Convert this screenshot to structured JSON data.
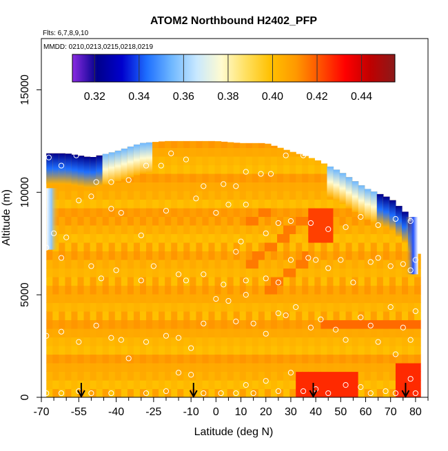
{
  "chart_data": {
    "type": "heatmap",
    "title": "ATOM2 Northbound H2402_PFP",
    "subtitle_lines": [
      "Flts: 6,7,8,9,10",
      "MMDD: 0210,0213,0215,0218,0219"
    ],
    "xlabel": "Latitude (deg N)",
    "ylabel": "Altitude (m)",
    "xlim": [
      -70,
      85
    ],
    "ylim": [
      0,
      17500
    ],
    "x_ticks": [
      -70,
      -55,
      -40,
      -25,
      -10,
      0,
      10,
      20,
      30,
      40,
      50,
      60,
      70,
      80
    ],
    "x_minor_ticks": [
      -65,
      -60,
      -50,
      -45,
      -35,
      -30,
      -20,
      -15,
      -5,
      5,
      15,
      25,
      35,
      45,
      55,
      65,
      75,
      85
    ],
    "y_ticks": [
      0,
      5000,
      10000,
      15000
    ],
    "colorbar": {
      "min": 0.31,
      "max": 0.455,
      "ticks": [
        0.32,
        0.34,
        0.36,
        0.38,
        0.4,
        0.42,
        0.44
      ],
      "tick_labels": [
        "0.32",
        "0.34",
        "0.36",
        "0.38",
        "0.40",
        "0.42",
        "0.44"
      ],
      "colors": [
        "#8a2be2",
        "#00008b",
        "#0000cd",
        "#1e6fff",
        "#6fb8ff",
        "#c8e8ff",
        "#fffbd0",
        "#ffe060",
        "#ffc000",
        "#ff9900",
        "#ff5000",
        "#ff0000",
        "#c00000",
        "#8b1a1a"
      ]
    },
    "grid": false,
    "legend": "top-inside",
    "profile_columns": [
      {
        "lat": -68,
        "top": 11900,
        "band": "blue"
      },
      {
        "lat": -60,
        "top": 11900,
        "band": "blue"
      },
      {
        "lat": -50,
        "top": 11700,
        "band": "blue"
      },
      {
        "lat": -40,
        "top": 12000,
        "band": "light"
      },
      {
        "lat": -30,
        "top": 12400,
        "band": "light"
      },
      {
        "lat": -20,
        "top": 12500,
        "band": "orange"
      },
      {
        "lat": -10,
        "top": 12500,
        "band": "orange"
      },
      {
        "lat": 0,
        "top": 12500,
        "band": "orange"
      },
      {
        "lat": 10,
        "top": 12400,
        "band": "orange"
      },
      {
        "lat": 20,
        "top": 12400,
        "band": "orange"
      },
      {
        "lat": 30,
        "top": 12000,
        "band": "orange"
      },
      {
        "lat": 40,
        "top": 11600,
        "band": "orange"
      },
      {
        "lat": 50,
        "top": 11000,
        "band": "light"
      },
      {
        "lat": 60,
        "top": 10200,
        "band": "light"
      },
      {
        "lat": 70,
        "top": 9700,
        "band": "blue"
      },
      {
        "lat": 78,
        "top": 8800,
        "band": "blue"
      },
      {
        "lat": 80,
        "top": 7000,
        "band": "orange"
      }
    ],
    "arrows_lat": [
      -54,
      -9,
      39,
      76
    ],
    "points": [
      [
        -67,
        11700
      ],
      [
        -62,
        11300
      ],
      [
        -56,
        11800
      ],
      [
        -48,
        10500
      ],
      [
        -42,
        10500
      ],
      [
        -35,
        10600
      ],
      [
        -28,
        11300
      ],
      [
        -22,
        11300
      ],
      [
        -18,
        11900
      ],
      [
        -12,
        11600
      ],
      [
        -5,
        10300
      ],
      [
        3,
        10400
      ],
      [
        8,
        10300
      ],
      [
        12,
        11000
      ],
      [
        18,
        10900
      ],
      [
        22,
        10900
      ],
      [
        28,
        11800
      ],
      [
        35,
        11800
      ],
      [
        40,
        11800
      ],
      [
        -65,
        8000
      ],
      [
        -60,
        7800
      ],
      [
        -55,
        9600
      ],
      [
        -50,
        9800
      ],
      [
        -42,
        9200
      ],
      [
        -38,
        9000
      ],
      [
        -30,
        7900
      ],
      [
        -20,
        9100
      ],
      [
        -8,
        9700
      ],
      [
        0,
        9000
      ],
      [
        5,
        9400
      ],
      [
        10,
        7600
      ],
      [
        12,
        9400
      ],
      [
        20,
        8000
      ],
      [
        25,
        8500
      ],
      [
        30,
        8600
      ],
      [
        38,
        8500
      ],
      [
        45,
        8200
      ],
      [
        52,
        8300
      ],
      [
        58,
        8800
      ],
      [
        65,
        8400
      ],
      [
        72,
        8700
      ],
      [
        78,
        8600
      ],
      [
        -68,
        7300
      ],
      [
        -62,
        6800
      ],
      [
        -50,
        6400
      ],
      [
        -46,
        5800
      ],
      [
        -40,
        6200
      ],
      [
        -30,
        5700
      ],
      [
        -25,
        6400
      ],
      [
        -15,
        6000
      ],
      [
        -12,
        5700
      ],
      [
        -5,
        6000
      ],
      [
        3,
        5500
      ],
      [
        8,
        7100
      ],
      [
        12,
        5700
      ],
      [
        20,
        5800
      ],
      [
        25,
        5600
      ],
      [
        30,
        6700
      ],
      [
        37,
        6800
      ],
      [
        40,
        6700
      ],
      [
        45,
        6300
      ],
      [
        50,
        6700
      ],
      [
        55,
        5600
      ],
      [
        62,
        6600
      ],
      [
        65,
        6800
      ],
      [
        70,
        6400
      ],
      [
        75,
        6500
      ],
      [
        78,
        6200
      ],
      [
        80,
        6700
      ],
      [
        -68,
        3000
      ],
      [
        -62,
        3200
      ],
      [
        -55,
        2700
      ],
      [
        -48,
        3500
      ],
      [
        -42,
        2900
      ],
      [
        -38,
        2800
      ],
      [
        -28,
        2700
      ],
      [
        -20,
        3000
      ],
      [
        -15,
        2900
      ],
      [
        -10,
        2400
      ],
      [
        -5,
        3600
      ],
      [
        0,
        4800
      ],
      [
        5,
        4700
      ],
      [
        8,
        3700
      ],
      [
        12,
        5000
      ],
      [
        15,
        3600
      ],
      [
        20,
        3100
      ],
      [
        25,
        4100
      ],
      [
        28,
        4000
      ],
      [
        32,
        4400
      ],
      [
        38,
        3400
      ],
      [
        42,
        3800
      ],
      [
        48,
        3300
      ],
      [
        52,
        2800
      ],
      [
        58,
        3900
      ],
      [
        62,
        3500
      ],
      [
        65,
        2700
      ],
      [
        70,
        4400
      ],
      [
        72,
        2100
      ],
      [
        75,
        3400
      ],
      [
        78,
        2800
      ],
      [
        80,
        4200
      ],
      [
        -68,
        200
      ],
      [
        -62,
        200
      ],
      [
        -55,
        300
      ],
      [
        -50,
        200
      ],
      [
        -42,
        200
      ],
      [
        -35,
        1900
      ],
      [
        -28,
        200
      ],
      [
        -20,
        300
      ],
      [
        -15,
        1200
      ],
      [
        -10,
        1100
      ],
      [
        -5,
        200
      ],
      [
        2,
        200
      ],
      [
        8,
        200
      ],
      [
        12,
        600
      ],
      [
        15,
        200
      ],
      [
        20,
        800
      ],
      [
        25,
        300
      ],
      [
        30,
        1200
      ],
      [
        35,
        300
      ],
      [
        40,
        400
      ],
      [
        45,
        200
      ],
      [
        52,
        600
      ],
      [
        58,
        500
      ],
      [
        62,
        200
      ],
      [
        68,
        300
      ],
      [
        72,
        200
      ],
      [
        78,
        900
      ],
      [
        80,
        200
      ]
    ]
  }
}
